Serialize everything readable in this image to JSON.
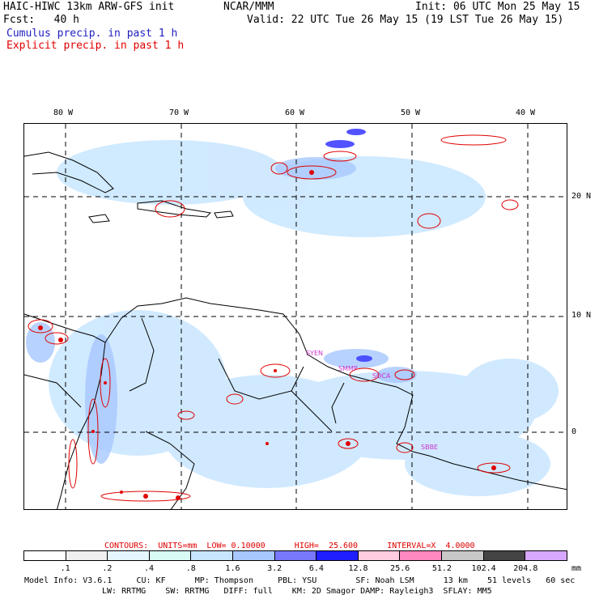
{
  "header": {
    "model": "HAIC-HIWC 13km ARW-GFS init",
    "org": "NCAR/MMM",
    "init": "Init: 06 UTC Mon 25 May 15",
    "fcst": "Fcst:   40 h",
    "valid": "Valid: 22 UTC Tue 26 May 15 (19 LST Tue 26 May 15)",
    "legend_cumulus": "Cumulus precip. in past 1 h",
    "legend_explicit": "Explicit precip. in past 1 h"
  },
  "map": {
    "lon_labels": [
      "80 W",
      "70 W",
      "60 W",
      "50 W",
      "40 W"
    ],
    "lat_labels": [
      "20 N",
      "10 N",
      "0"
    ],
    "stations": [
      "SYEN",
      "SMMP",
      "SOCA",
      "SBBE"
    ],
    "colors": {
      "cumulus": "#3a3aff",
      "explicit": "#e00000",
      "coast": "#000000",
      "station": "#cc33cc"
    }
  },
  "contours": {
    "label": "CONTOURS:  UNITS=mm  LOW= 0.10000      HIGH=  25.600      INTERVAL=X  4.0000"
  },
  "colorbar": {
    "ticks": [
      ".1",
      ".2",
      ".4",
      ".8",
      "1.6",
      "3.2",
      "6.4",
      "12.8",
      "25.6",
      "51.2",
      "102.4",
      "204.8"
    ],
    "units": "mm",
    "colors": [
      "#ffffff",
      "#f0f0f0",
      "#e6f6ff",
      "#d9fbf6",
      "#c8e6ff",
      "#a7c8ff",
      "#7878ff",
      "#1e1eff",
      "#ffcce0",
      "#ff88c0",
      "#c8c8c8",
      "#444444",
      "#d8a8ff"
    ]
  },
  "footer": {
    "line1": "Model Info: V3.6.1     CU: KF      MP: Thompson     PBL: YSU        SF: Noah LSM      13 km    51 levels   60 sec",
    "line2": "LW: RRTMG    SW: RRTMG   DIFF: full    KM: 2D Smagor DAMP: Rayleigh3  SFLAY: MM5"
  }
}
